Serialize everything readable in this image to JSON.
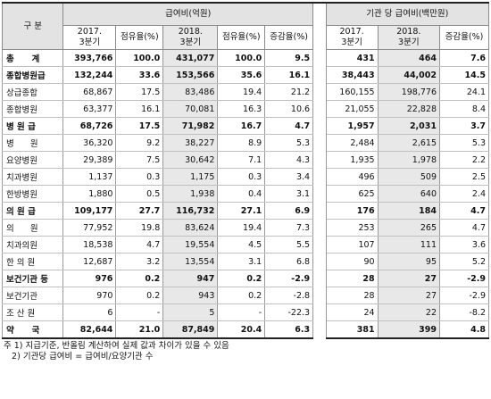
{
  "header": {
    "group_label": "구  분",
    "group_payment": "급여비(억원)",
    "group_per_inst": "기관 당 급여비(백만원)",
    "col_2017": "2017.\n3분기",
    "col_share_2017": "점유율(%)",
    "col_2018": "2018.\n3분기",
    "col_share_2018": "점유율(%)",
    "col_growth": "증감율(%)",
    "col_inst_2017": "2017.\n3분기",
    "col_inst_2018": "2018.\n3분기",
    "col_inst_growth": "증감율(%)"
  },
  "rows": [
    {
      "label": "총      계",
      "cells": [
        "393,766",
        "100.0",
        "431,077",
        "100.0",
        "9.5",
        "431",
        "464",
        "7.6"
      ],
      "bold": true
    },
    {
      "label": "종합병원급",
      "cells": [
        "132,244",
        "33.6",
        "153,566",
        "35.6",
        "16.1",
        "38,443",
        "44,002",
        "14.5"
      ],
      "bold": true
    },
    {
      "label": "상급종합",
      "cells": [
        "68,867",
        "17.5",
        "83,486",
        "19.4",
        "21.2",
        "160,155",
        "198,776",
        "24.1"
      ],
      "bold": false
    },
    {
      "label": "종합병원",
      "cells": [
        "63,377",
        "16.1",
        "70,081",
        "16.3",
        "10.6",
        "21,055",
        "22,828",
        "8.4"
      ],
      "bold": false
    },
    {
      "label": "병 원 급",
      "cells": [
        "68,726",
        "17.5",
        "71,982",
        "16.7",
        "4.7",
        "1,957",
        "2,031",
        "3.7"
      ],
      "bold": true
    },
    {
      "label": "병      원",
      "cells": [
        "36,320",
        "9.2",
        "38,227",
        "8.9",
        "5.3",
        "2,484",
        "2,615",
        "5.3"
      ],
      "bold": false
    },
    {
      "label": "요양병원",
      "cells": [
        "29,389",
        "7.5",
        "30,642",
        "7.1",
        "4.3",
        "1,935",
        "1,978",
        "2.2"
      ],
      "bold": false
    },
    {
      "label": "치과병원",
      "cells": [
        "1,137",
        "0.3",
        "1,175",
        "0.3",
        "3.4",
        "496",
        "509",
        "2.5"
      ],
      "bold": false
    },
    {
      "label": "한방병원",
      "cells": [
        "1,880",
        "0.5",
        "1,938",
        "0.4",
        "3.1",
        "625",
        "640",
        "2.4"
      ],
      "bold": false
    },
    {
      "label": "의 원 급",
      "cells": [
        "109,177",
        "27.7",
        "116,732",
        "27.1",
        "6.9",
        "176",
        "184",
        "4.7"
      ],
      "bold": true
    },
    {
      "label": "의      원",
      "cells": [
        "77,952",
        "19.8",
        "83,624",
        "19.4",
        "7.3",
        "253",
        "265",
        "4.7"
      ],
      "bold": false
    },
    {
      "label": "치과의원",
      "cells": [
        "18,538",
        "4.7",
        "19,554",
        "4.5",
        "5.5",
        "107",
        "111",
        "3.6"
      ],
      "bold": false
    },
    {
      "label": "한 의 원",
      "cells": [
        "12,687",
        "3.2",
        "13,554",
        "3.1",
        "6.8",
        "90",
        "95",
        "5.2"
      ],
      "bold": false
    },
    {
      "label": "보건기관 등",
      "cells": [
        "976",
        "0.2",
        "947",
        "0.2",
        "-2.9",
        "28",
        "27",
        "-2.9"
      ],
      "bold": true
    },
    {
      "label": "보건기관",
      "cells": [
        "970",
        "0.2",
        "943",
        "0.2",
        "-2.8",
        "28",
        "27",
        "-2.9"
      ],
      "bold": false
    },
    {
      "label": "조 산 원",
      "cells": [
        "6",
        "-",
        "5",
        "-",
        "-22.3",
        "24",
        "22",
        "-8.2"
      ],
      "bold": false
    },
    {
      "label": "약      국",
      "cells": [
        "82,644",
        "21.0",
        "87,849",
        "20.4",
        "6.3",
        "381",
        "399",
        "4.8"
      ],
      "bold": true
    }
  ],
  "notes": [
    "주 1) 지급기준, 반올림 계산하여 실제 값과 차이가 있을 수 있음",
    "   2) 기관당 급여비 = 급여비/요양기관 수"
  ]
}
